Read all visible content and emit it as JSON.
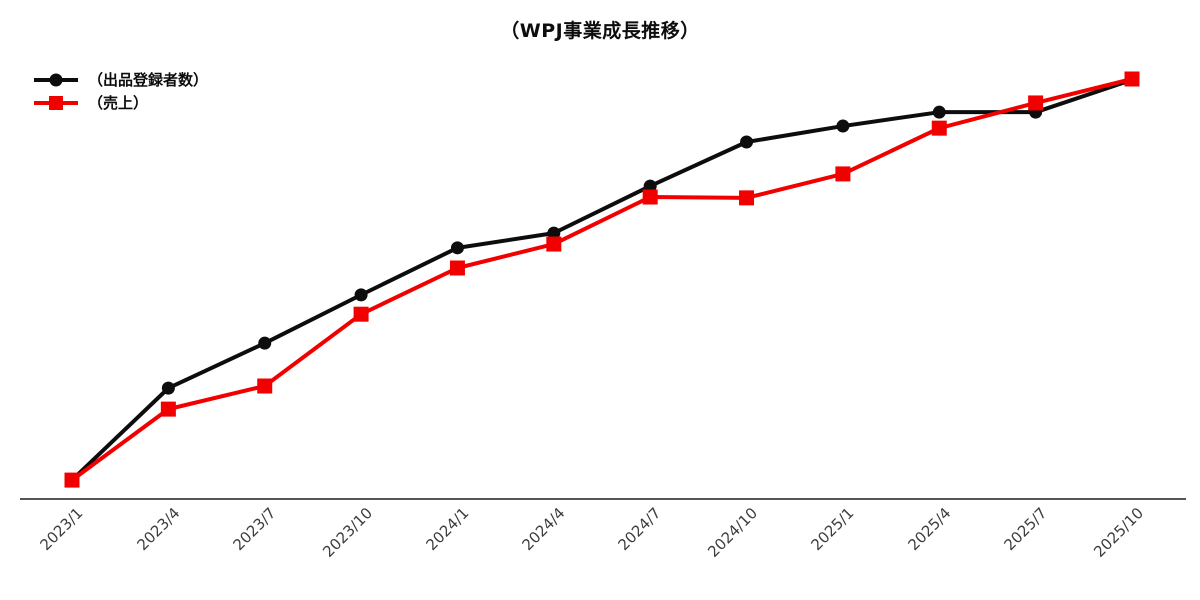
{
  "title": "（WPJ事業成長推移）",
  "legend": {
    "items": [
      {
        "label": "（出品登録者数）",
        "color": "#0d0d0d",
        "marker": "circle",
        "name": "registrations"
      },
      {
        "label": "（売上）",
        "color": "#f20000",
        "marker": "square",
        "name": "sales"
      }
    ]
  },
  "chart_data": {
    "type": "line",
    "title": "（WPJ事業成長推移）",
    "categories": [
      "2023/1",
      "2023/4",
      "2023/7",
      "2023/10",
      "2024/1",
      "2024/4",
      "2024/7",
      "2024/10",
      "2025/1",
      "2025/4",
      "2025/7",
      "2025/10"
    ],
    "series": [
      {
        "name": "（出品登録者数）",
        "color": "#0d0d0d",
        "marker": "circle",
        "values": [
          4.5,
          26.4,
          37.1,
          48.6,
          59.8,
          63.3,
          74.5,
          85.0,
          88.8,
          92.1,
          92.1,
          99.8
        ]
      },
      {
        "name": "（売上）",
        "color": "#f20000",
        "marker": "square",
        "values": [
          4.5,
          21.4,
          26.9,
          44.0,
          55.0,
          60.7,
          71.9,
          71.7,
          77.4,
          88.3,
          94.3,
          100.0
        ]
      }
    ],
    "xlabel": "",
    "ylabel": "",
    "ylim": [
      0,
      105
    ],
    "y_axis_visible": false,
    "grid": false,
    "legend_position": "upper-left",
    "x_tick_rotation": 45,
    "axis_color": "#555555",
    "value_note": "relative units estimated from plot; no y-axis scale shown"
  }
}
